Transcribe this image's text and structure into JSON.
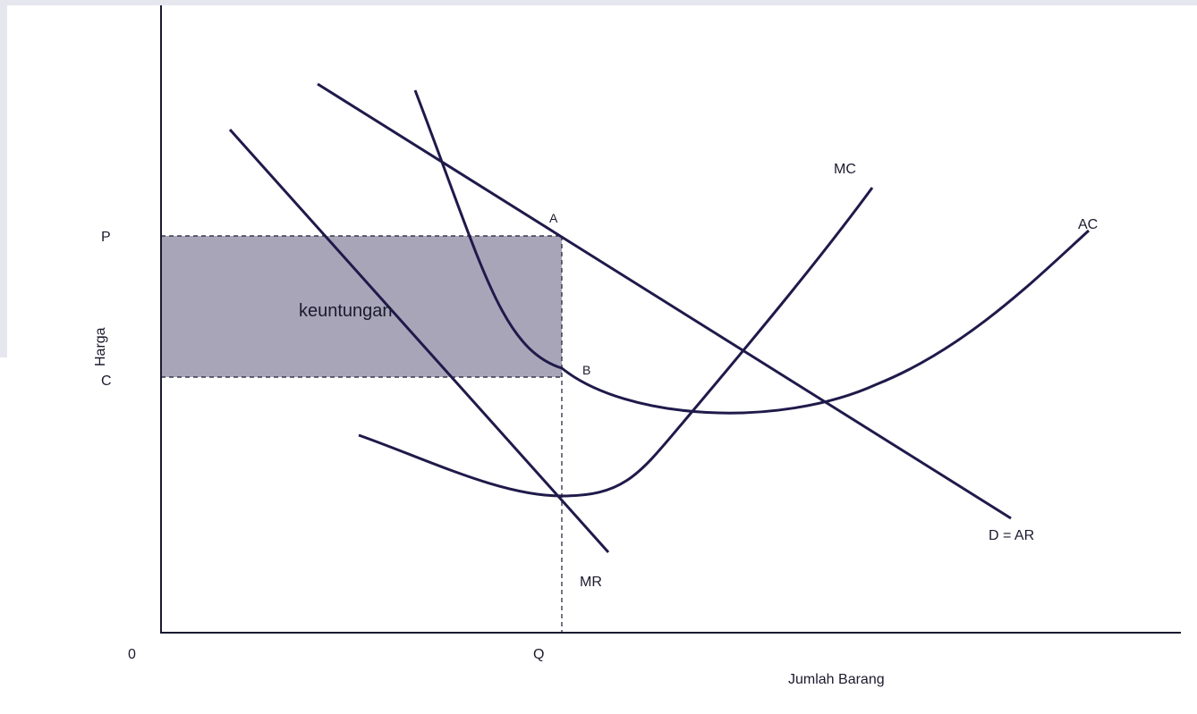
{
  "axes": {
    "origin": "0",
    "x_label": "Jumlah Barang",
    "y_label": "Harga",
    "x_mark": "Q",
    "y_marks": {
      "price": "P",
      "cost": "C"
    }
  },
  "region": {
    "label": "keuntungan",
    "color": "#a9a5b9"
  },
  "points": {
    "a": "A",
    "b": "B"
  },
  "curves": {
    "demand": "D = AR",
    "mr": "MR",
    "mc": "MC",
    "ac": "AC"
  },
  "colors": {
    "curve": "#1f1a4a",
    "axis": "#1a1a2e"
  }
}
